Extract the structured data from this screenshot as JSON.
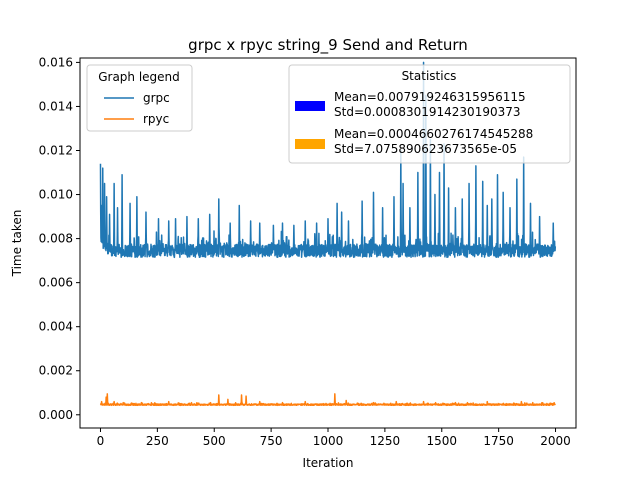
{
  "chart_data": {
    "type": "line",
    "title": "grpc x rpyc string_9 Send and Return",
    "xlabel": "Iteration",
    "ylabel": "Time taken",
    "xlim": [
      -90,
      2090
    ],
    "ylim": [
      -0.0006,
      0.0162
    ],
    "x_ticks": [
      0,
      250,
      500,
      750,
      1000,
      1250,
      1500,
      1750,
      2000
    ],
    "y_ticks": [
      0.0,
      0.002,
      0.004,
      0.006,
      0.008,
      0.01,
      0.012,
      0.014,
      0.016
    ],
    "grid": false,
    "n_points": 2000,
    "series": [
      {
        "name": "grpc",
        "color": "#1f77b4",
        "baseline": 0.00745,
        "spread": 0.0003,
        "low_clip": 0.0069,
        "spikes": [
          [
            0,
            0.0114
          ],
          [
            5,
            0.0095
          ],
          [
            10,
            0.0112
          ],
          [
            18,
            0.0105
          ],
          [
            27,
            0.0099
          ],
          [
            40,
            0.0091
          ],
          [
            60,
            0.0105
          ],
          [
            75,
            0.0094
          ],
          [
            95,
            0.0109
          ],
          [
            130,
            0.0096
          ],
          [
            160,
            0.0099
          ],
          [
            200,
            0.0092
          ],
          [
            255,
            0.0089
          ],
          [
            300,
            0.0088
          ],
          [
            330,
            0.0089
          ],
          [
            380,
            0.009
          ],
          [
            430,
            0.0089
          ],
          [
            480,
            0.0091
          ],
          [
            520,
            0.0098
          ],
          [
            570,
            0.0087
          ],
          [
            610,
            0.0095
          ],
          [
            660,
            0.0088
          ],
          [
            700,
            0.0087
          ],
          [
            760,
            0.0086
          ],
          [
            800,
            0.0087
          ],
          [
            850,
            0.0086
          ],
          [
            900,
            0.0088
          ],
          [
            950,
            0.0087
          ],
          [
            1000,
            0.0089
          ],
          [
            1040,
            0.0096
          ],
          [
            1060,
            0.0092
          ],
          [
            1090,
            0.0088
          ],
          [
            1150,
            0.0097
          ],
          [
            1200,
            0.0101
          ],
          [
            1240,
            0.0094
          ],
          [
            1290,
            0.0099
          ],
          [
            1320,
            0.012
          ],
          [
            1330,
            0.0105
          ],
          [
            1360,
            0.0094
          ],
          [
            1395,
            0.011
          ],
          [
            1420,
            0.016
          ],
          [
            1430,
            0.0145
          ],
          [
            1450,
            0.0125
          ],
          [
            1470,
            0.01
          ],
          [
            1490,
            0.011
          ],
          [
            1510,
            0.0123
          ],
          [
            1530,
            0.0103
          ],
          [
            1560,
            0.0094
          ],
          [
            1590,
            0.0098
          ],
          [
            1620,
            0.0105
          ],
          [
            1650,
            0.0113
          ],
          [
            1680,
            0.0106
          ],
          [
            1700,
            0.0095
          ],
          [
            1720,
            0.0098
          ],
          [
            1745,
            0.0109
          ],
          [
            1770,
            0.0101
          ],
          [
            1800,
            0.0094
          ],
          [
            1830,
            0.0107
          ],
          [
            1860,
            0.0117
          ],
          [
            1890,
            0.0096
          ],
          [
            1930,
            0.009
          ],
          [
            1990,
            0.0087
          ]
        ]
      },
      {
        "name": "rpyc",
        "color": "#ff7f0e",
        "baseline": 0.00046,
        "spread": 3e-05,
        "low_clip": 0.0004,
        "spikes": [
          [
            5,
            0.0006
          ],
          [
            25,
            0.0008
          ],
          [
            30,
            0.00095
          ],
          [
            60,
            0.0006
          ],
          [
            100,
            0.00055
          ],
          [
            180,
            0.00055
          ],
          [
            300,
            0.0006
          ],
          [
            400,
            0.00055
          ],
          [
            520,
            0.0009
          ],
          [
            560,
            0.0007
          ],
          [
            620,
            0.0009
          ],
          [
            640,
            0.00085
          ],
          [
            700,
            0.0006
          ],
          [
            800,
            0.00055
          ],
          [
            900,
            0.0006
          ],
          [
            1030,
            0.00095
          ],
          [
            1080,
            0.00065
          ],
          [
            1200,
            0.00055
          ],
          [
            1300,
            0.0006
          ],
          [
            1420,
            0.0006
          ],
          [
            1560,
            0.00055
          ],
          [
            1700,
            0.0006
          ],
          [
            1850,
            0.0006
          ],
          [
            1900,
            0.00055
          ]
        ]
      }
    ],
    "legend": {
      "title": "Graph legend",
      "location": "upper left"
    },
    "statistics_box": {
      "title": "Statistics",
      "location": "upper right",
      "entries": [
        {
          "color": "#0000ff",
          "line1": "Mean=0.007919246315956115",
          "line2": "Std=0.0008301914230190373"
        },
        {
          "color": "#ffa500",
          "line1": "Mean=0.0004660276174545288",
          "line2": "Std=7.075890623673565e-05"
        }
      ]
    }
  }
}
